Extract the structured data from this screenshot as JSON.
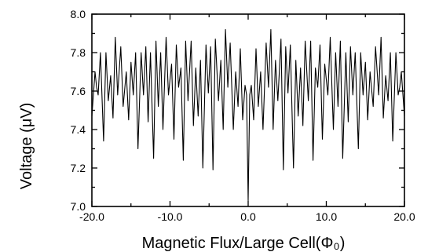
{
  "chart_data": {
    "type": "line",
    "title": "",
    "xlabel": "Magnetic Flux/Large Cell(Φ₀)",
    "ylabel": "Voltage (μV)",
    "xlim": [
      -20.0,
      20.0
    ],
    "ylim": [
      7.0,
      8.0
    ],
    "x_ticks": [
      -20.0,
      -10.0,
      0.0,
      10.0,
      20.0
    ],
    "x_tick_labels": [
      "-20.0",
      "-10.0",
      "0.0",
      "10.0",
      "20.0"
    ],
    "y_ticks": [
      7.0,
      7.2,
      7.4,
      7.6,
      7.8,
      8.0
    ],
    "y_tick_labels": [
      "7.0",
      "7.2",
      "7.4",
      "7.6",
      "7.8",
      "8.0"
    ],
    "grid": false,
    "legend": "none",
    "series": [
      {
        "x": [
          -20.0,
          -19.6,
          -19.4,
          -19.2,
          -18.9,
          -18.5,
          -18.2,
          -17.9,
          -17.6,
          -17.3,
          -17.0,
          -16.7,
          -16.3,
          -16.0,
          -15.6,
          -15.3,
          -15.0,
          -14.7,
          -14.4,
          -14.1,
          -13.7,
          -13.4,
          -13.1,
          -12.8,
          -12.5,
          -12.1,
          -11.8,
          -11.5,
          -11.2,
          -10.9,
          -10.5,
          -10.2,
          -9.8,
          -9.5,
          -9.2,
          -8.9,
          -8.6,
          -8.3,
          -8.0,
          -7.7,
          -7.3,
          -7.0,
          -6.7,
          -6.4,
          -6.1,
          -5.8,
          -5.4,
          -5.1,
          -4.8,
          -4.5,
          -4.2,
          -3.8,
          -3.5,
          -3.2,
          -2.9,
          -2.6,
          -2.3,
          -1.9,
          -1.6,
          -1.3,
          -1.0,
          -0.7,
          -0.4,
          -0.2,
          0.0,
          0.2,
          0.4,
          0.7,
          1.0,
          1.3,
          1.6,
          1.9,
          2.3,
          2.6,
          2.9,
          3.2,
          3.5,
          3.8,
          4.2,
          4.5,
          4.8,
          5.1,
          5.4,
          5.8,
          6.1,
          6.4,
          6.7,
          7.0,
          7.3,
          7.7,
          8.0,
          8.3,
          8.6,
          8.9,
          9.2,
          9.5,
          9.8,
          10.2,
          10.5,
          10.9,
          11.2,
          11.5,
          11.8,
          12.1,
          12.5,
          12.8,
          13.1,
          13.4,
          13.7,
          14.1,
          14.4,
          14.7,
          15.0,
          15.3,
          15.6,
          16.0,
          16.3,
          16.7,
          17.0,
          17.3,
          17.6,
          17.9,
          18.2,
          18.5,
          18.9,
          19.2,
          19.4,
          19.6,
          20.0
        ],
        "y": [
          7.47,
          7.7,
          7.62,
          7.58,
          7.8,
          7.34,
          7.8,
          7.55,
          7.68,
          7.46,
          7.88,
          7.58,
          7.83,
          7.52,
          7.7,
          7.45,
          7.75,
          7.58,
          7.8,
          7.3,
          7.8,
          7.58,
          7.83,
          7.44,
          7.8,
          7.25,
          7.86,
          7.52,
          7.8,
          7.4,
          7.88,
          7.58,
          7.74,
          7.35,
          7.84,
          7.62,
          7.72,
          7.24,
          7.86,
          7.55,
          7.86,
          7.42,
          7.72,
          7.47,
          7.76,
          7.2,
          7.84,
          7.59,
          7.83,
          7.19,
          7.87,
          7.55,
          7.76,
          7.4,
          7.92,
          7.62,
          7.85,
          7.4,
          7.7,
          7.52,
          7.82,
          7.45,
          7.63,
          7.58,
          7.03,
          7.58,
          7.63,
          7.45,
          7.82,
          7.52,
          7.7,
          7.4,
          7.85,
          7.62,
          7.92,
          7.4,
          7.76,
          7.55,
          7.87,
          7.19,
          7.83,
          7.59,
          7.84,
          7.2,
          7.76,
          7.47,
          7.72,
          7.42,
          7.86,
          7.55,
          7.86,
          7.24,
          7.72,
          7.62,
          7.84,
          7.35,
          7.74,
          7.58,
          7.88,
          7.4,
          7.8,
          7.52,
          7.86,
          7.25,
          7.8,
          7.44,
          7.83,
          7.58,
          7.8,
          7.3,
          7.8,
          7.58,
          7.75,
          7.45,
          7.7,
          7.52,
          7.83,
          7.58,
          7.88,
          7.46,
          7.68,
          7.55,
          7.8,
          7.34,
          7.8,
          7.58,
          7.62,
          7.7,
          7.47
        ]
      }
    ]
  }
}
